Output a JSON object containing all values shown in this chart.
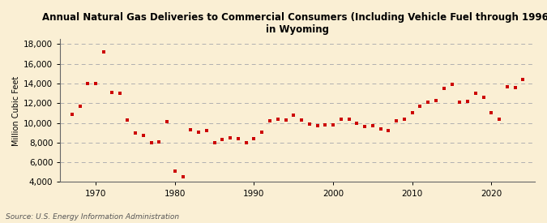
{
  "title": "Annual Natural Gas Deliveries to Commercial Consumers (Including Vehicle Fuel through 1996)\nin Wyoming",
  "ylabel": "Million Cubic Feet",
  "source": "Source: U.S. Energy Information Administration",
  "background_color": "#faefd4",
  "plot_bg_color": "#faefd4",
  "marker_color": "#cc0000",
  "grid_color": "#b0b0b0",
  "years": [
    1967,
    1968,
    1969,
    1970,
    1971,
    1972,
    1973,
    1974,
    1975,
    1976,
    1977,
    1978,
    1979,
    1980,
    1981,
    1982,
    1983,
    1984,
    1985,
    1986,
    1987,
    1988,
    1989,
    1990,
    1991,
    1992,
    1993,
    1994,
    1995,
    1996,
    1997,
    1998,
    1999,
    2000,
    2001,
    2002,
    2003,
    2004,
    2005,
    2006,
    2007,
    2008,
    2009,
    2010,
    2011,
    2012,
    2013,
    2014,
    2015,
    2016,
    2017,
    2018,
    2019,
    2020,
    2021,
    2022,
    2023,
    2024
  ],
  "values": [
    10900,
    11700,
    14000,
    14000,
    17200,
    13100,
    13000,
    10300,
    9000,
    8700,
    8000,
    8100,
    10100,
    5100,
    4500,
    9300,
    9100,
    9200,
    8000,
    8300,
    8500,
    8400,
    8000,
    8400,
    9100,
    10200,
    10400,
    10300,
    10800,
    10300,
    9900,
    9700,
    9800,
    9800,
    10400,
    10400,
    10000,
    9600,
    9700,
    9400,
    9200,
    10200,
    10400,
    11000,
    11700,
    12100,
    12300,
    13500,
    13900,
    12100,
    12200,
    13000,
    12600,
    11000,
    10400,
    13700,
    13600,
    14400
  ],
  "ylim": [
    4000,
    18500
  ],
  "yticks": [
    4000,
    6000,
    8000,
    10000,
    12000,
    14000,
    16000,
    18000
  ],
  "xlim": [
    1965.5,
    2025.5
  ],
  "xticks": [
    1970,
    1980,
    1990,
    2000,
    2010,
    2020
  ]
}
